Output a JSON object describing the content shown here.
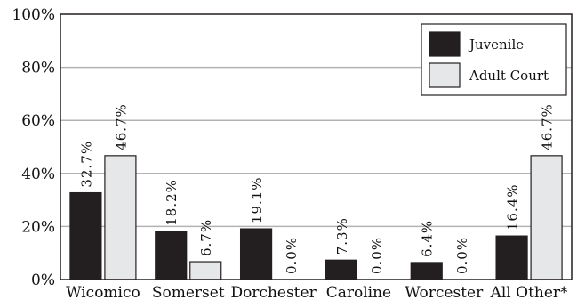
{
  "chart_data": {
    "type": "bar",
    "categories": [
      "Wicomico",
      "Somerset",
      "Dorchester",
      "Caroline",
      "Worcester",
      "All Other*"
    ],
    "series": [
      {
        "name": "Juvenile",
        "values": [
          32.7,
          18.2,
          19.1,
          7.3,
          6.4,
          16.4
        ],
        "labels": [
          "32.7%",
          "18.2%",
          "19.1%",
          "7.3%",
          "6.4%",
          "16.4%"
        ],
        "color": "#231f20"
      },
      {
        "name": "Adult Court",
        "values": [
          46.7,
          6.7,
          0.0,
          0.0,
          0.0,
          46.7
        ],
        "labels": [
          "46.7%",
          "6.7%",
          "0.0%",
          "0.0%",
          "0.0%",
          "46.7%"
        ],
        "color": "#e6e7e8"
      }
    ],
    "yticks": [
      "0%",
      "20%",
      "40%",
      "60%",
      "80%",
      "100%"
    ],
    "ylim": [
      0,
      100
    ],
    "grid": true,
    "legend_position": "top-right",
    "title": "",
    "xlabel": "",
    "ylabel": ""
  }
}
